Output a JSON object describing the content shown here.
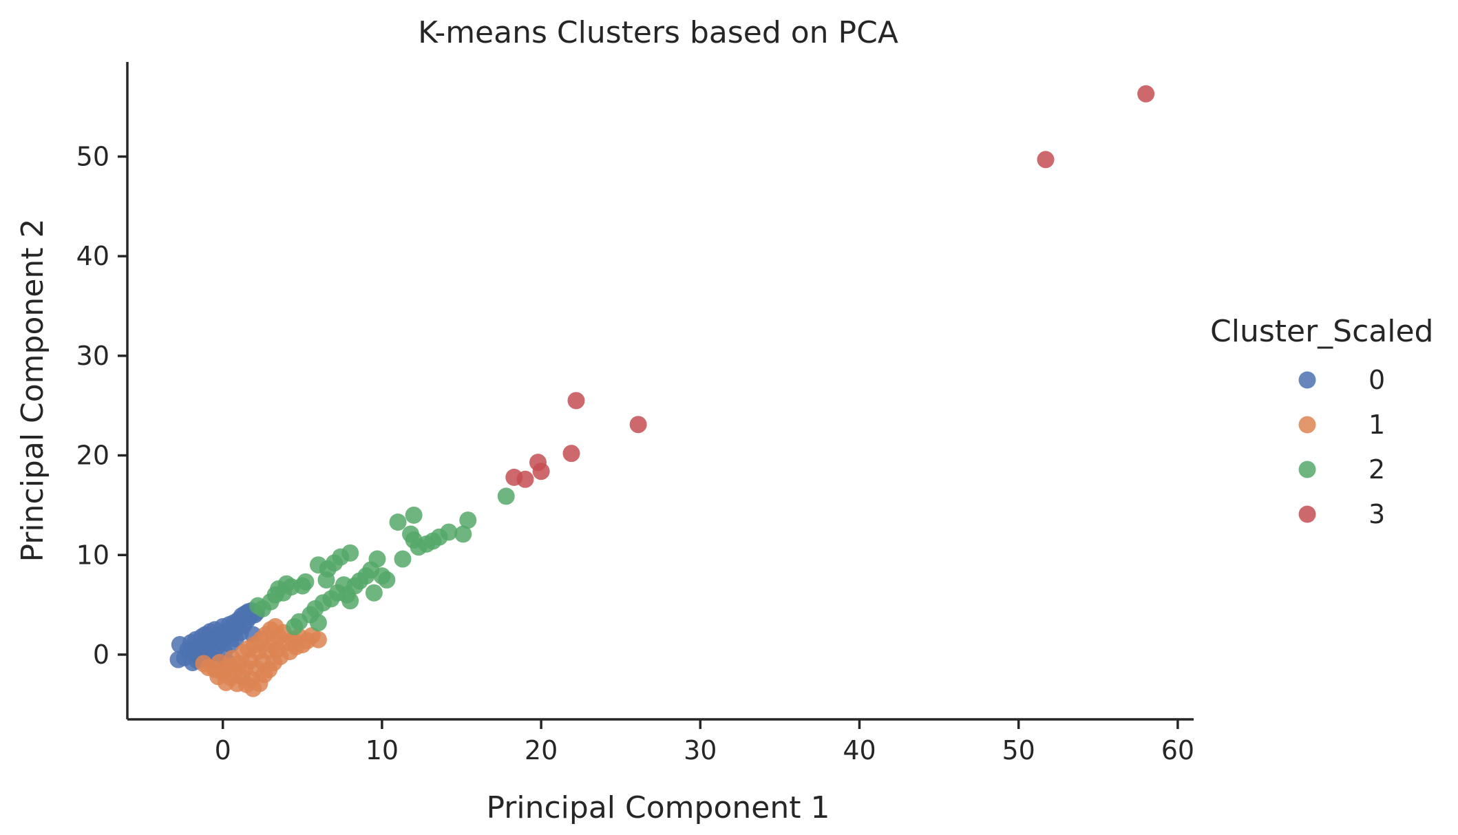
{
  "chart_data": {
    "type": "scatter",
    "title": "K-means Clusters based on PCA",
    "xlabel": "Principal Component 1",
    "ylabel": "Principal Component 2",
    "xlim": [
      -6,
      61
    ],
    "ylim": [
      -6.5,
      59.5
    ],
    "xticks": [
      0,
      10,
      20,
      30,
      40,
      50,
      60
    ],
    "yticks": [
      0,
      10,
      20,
      30,
      40,
      50
    ],
    "grid": false,
    "legend": {
      "title": "Cluster_Scaled",
      "placement": "right"
    },
    "series": [
      {
        "name": "0",
        "color": "#4c72b0",
        "points": [
          [
            -2.8,
            -0.5
          ],
          [
            -2.7,
            1.0
          ],
          [
            -2.4,
            -0.3
          ],
          [
            -2.2,
            0.5
          ],
          [
            -2.0,
            1.2
          ],
          [
            -1.9,
            -0.8
          ],
          [
            -1.8,
            0.2
          ],
          [
            -1.7,
            1.5
          ],
          [
            -1.5,
            0.8
          ],
          [
            -1.4,
            -0.5
          ],
          [
            -1.3,
            1.8
          ],
          [
            -1.2,
            0.1
          ],
          [
            -1.1,
            2.0
          ],
          [
            -1.0,
            1.1
          ],
          [
            -0.9,
            -0.2
          ],
          [
            -0.8,
            2.3
          ],
          [
            -0.7,
            0.6
          ],
          [
            -0.6,
            1.6
          ],
          [
            -0.5,
            2.5
          ],
          [
            -0.4,
            -0.6
          ],
          [
            -0.3,
            0.9
          ],
          [
            -0.2,
            2.0
          ],
          [
            -0.1,
            1.3
          ],
          [
            0.0,
            2.8
          ],
          [
            0.1,
            0.3
          ],
          [
            0.2,
            1.8
          ],
          [
            0.3,
            2.4
          ],
          [
            0.4,
            3.0
          ],
          [
            0.5,
            1.0
          ],
          [
            0.6,
            2.1
          ],
          [
            0.7,
            3.2
          ],
          [
            0.8,
            1.6
          ],
          [
            0.9,
            2.7
          ],
          [
            1.0,
            3.5
          ],
          [
            1.1,
            2.2
          ],
          [
            1.2,
            3.9
          ],
          [
            1.3,
            2.9
          ],
          [
            1.4,
            4.1
          ],
          [
            1.5,
            3.4
          ],
          [
            1.6,
            4.3
          ],
          [
            1.7,
            3.8
          ],
          [
            1.8,
            4.4
          ],
          [
            2.0,
            4.0
          ],
          [
            2.1,
            4.2
          ],
          [
            1.9,
            2.0
          ],
          [
            0.3,
            -0.8
          ],
          [
            -0.6,
            -0.8
          ],
          [
            -1.6,
            -0.6
          ]
        ]
      },
      {
        "name": "1",
        "color": "#dd8452",
        "points": [
          [
            -0.5,
            -1.5
          ],
          [
            -0.3,
            -2.2
          ],
          [
            -0.2,
            -0.8
          ],
          [
            0.0,
            -1.8
          ],
          [
            0.2,
            -2.8
          ],
          [
            0.3,
            -1.2
          ],
          [
            0.5,
            -2.3
          ],
          [
            0.6,
            -0.4
          ],
          [
            0.8,
            -1.6
          ],
          [
            0.9,
            -2.9
          ],
          [
            1.0,
            -0.9
          ],
          [
            1.2,
            -2.2
          ],
          [
            1.3,
            0.2
          ],
          [
            1.4,
            -1.3
          ],
          [
            1.5,
            -3.0
          ],
          [
            1.6,
            0.6
          ],
          [
            1.7,
            -0.6
          ],
          [
            1.8,
            -2.5
          ],
          [
            1.9,
            -3.4
          ],
          [
            2.0,
            1.0
          ],
          [
            2.1,
            -1.4
          ],
          [
            2.2,
            0.3
          ],
          [
            2.3,
            -2.9
          ],
          [
            2.4,
            1.5
          ],
          [
            2.5,
            -0.7
          ],
          [
            2.6,
            -2.0
          ],
          [
            2.7,
            2.0
          ],
          [
            2.8,
            0.4
          ],
          [
            2.9,
            -1.5
          ],
          [
            3.0,
            2.5
          ],
          [
            3.1,
            1.0
          ],
          [
            3.2,
            -0.8
          ],
          [
            3.3,
            2.8
          ],
          [
            3.4,
            0.5
          ],
          [
            3.5,
            1.8
          ],
          [
            3.6,
            -0.2
          ],
          [
            3.8,
            2.2
          ],
          [
            4.0,
            1.2
          ],
          [
            4.2,
            0.3
          ],
          [
            4.4,
            1.5
          ],
          [
            4.6,
            0.8
          ],
          [
            4.8,
            1.8
          ],
          [
            5.0,
            1.0
          ],
          [
            5.3,
            1.4
          ],
          [
            5.6,
            1.9
          ],
          [
            6.0,
            1.5
          ],
          [
            -0.9,
            -1.3
          ],
          [
            -1.2,
            -0.9
          ]
        ]
      },
      {
        "name": "2",
        "color": "#55a868",
        "points": [
          [
            2.2,
            4.9
          ],
          [
            2.5,
            4.6
          ],
          [
            3.0,
            5.3
          ],
          [
            3.3,
            6.0
          ],
          [
            3.5,
            6.6
          ],
          [
            3.8,
            6.2
          ],
          [
            4.0,
            7.1
          ],
          [
            4.3,
            6.8
          ],
          [
            4.5,
            2.8
          ],
          [
            4.8,
            3.3
          ],
          [
            5.0,
            6.9
          ],
          [
            5.2,
            7.3
          ],
          [
            5.5,
            4.0
          ],
          [
            5.8,
            4.6
          ],
          [
            6.0,
            9.0
          ],
          [
            6.0,
            3.2
          ],
          [
            6.3,
            5.2
          ],
          [
            6.5,
            7.5
          ],
          [
            6.6,
            8.6
          ],
          [
            6.8,
            5.6
          ],
          [
            7.0,
            9.2
          ],
          [
            7.2,
            6.2
          ],
          [
            7.4,
            9.8
          ],
          [
            7.6,
            7.0
          ],
          [
            7.8,
            6.0
          ],
          [
            8.0,
            10.2
          ],
          [
            8.0,
            5.4
          ],
          [
            8.3,
            6.9
          ],
          [
            8.6,
            7.4
          ],
          [
            9.0,
            7.9
          ],
          [
            9.3,
            8.5
          ],
          [
            9.5,
            6.2
          ],
          [
            9.7,
            9.6
          ],
          [
            10.0,
            7.9
          ],
          [
            10.3,
            7.5
          ],
          [
            11.0,
            13.3
          ],
          [
            11.3,
            9.6
          ],
          [
            11.8,
            12.1
          ],
          [
            12.0,
            14.0
          ],
          [
            12.0,
            11.5
          ],
          [
            12.3,
            10.8
          ],
          [
            12.8,
            11.1
          ],
          [
            13.2,
            11.4
          ],
          [
            13.6,
            11.8
          ],
          [
            14.2,
            12.3
          ],
          [
            15.1,
            12.1
          ],
          [
            15.4,
            13.5
          ],
          [
            17.8,
            15.9
          ]
        ]
      },
      {
        "name": "3",
        "color": "#c44e52",
        "points": [
          [
            18.3,
            17.8
          ],
          [
            19.0,
            17.6
          ],
          [
            19.8,
            19.3
          ],
          [
            20.0,
            18.4
          ],
          [
            21.9,
            20.2
          ],
          [
            22.2,
            25.5
          ],
          [
            26.1,
            23.1
          ],
          [
            51.7,
            49.7
          ],
          [
            58.0,
            56.3
          ]
        ]
      }
    ]
  }
}
